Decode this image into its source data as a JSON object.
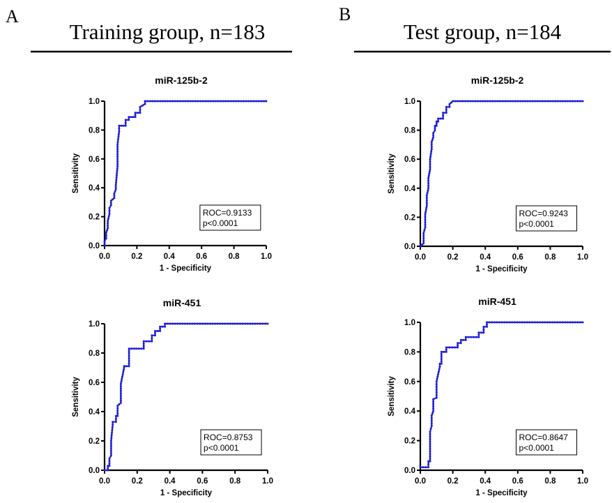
{
  "panels": [
    {
      "letter": "A",
      "title": "Training group, n=183"
    },
    {
      "letter": "B",
      "title": "Test group, n=184"
    }
  ],
  "style": {
    "curve_color": "#1f1fd6",
    "axis_color": "#000000"
  },
  "chart_data": [
    {
      "type": "line",
      "title": "miR-125b-2",
      "xlabel": "1 - Specificity",
      "ylabel": "Sensitivity",
      "xlim": [
        0,
        1
      ],
      "ylim": [
        0,
        1
      ],
      "xticks": [
        "0.0",
        "0.2",
        "0.4",
        "0.6",
        "0.8",
        "1.0"
      ],
      "yticks": [
        "0.0",
        "0.2",
        "0.4",
        "0.6",
        "0.8",
        "1.0"
      ],
      "roc_text": "ROC=0.9133",
      "p_text": "p<0.0001",
      "x": [
        0,
        0,
        0.01,
        0.01,
        0.02,
        0.02,
        0.03,
        0.03,
        0.04,
        0.04,
        0.06,
        0.06,
        0.07,
        0.07,
        0.08,
        0.08,
        0.09,
        0.09,
        0.13,
        0.13,
        0.15,
        0.15,
        0.19,
        0.19,
        0.22,
        0.22,
        0.25,
        0.25,
        1.0
      ],
      "y": [
        0,
        0.03,
        0.05,
        0.09,
        0.12,
        0.17,
        0.22,
        0.26,
        0.28,
        0.31,
        0.33,
        0.36,
        0.39,
        0.42,
        0.55,
        0.7,
        0.79,
        0.83,
        0.83,
        0.87,
        0.87,
        0.89,
        0.89,
        0.92,
        0.92,
        0.96,
        0.98,
        1.0,
        1.0
      ]
    },
    {
      "type": "line",
      "title": "miR-125b-2",
      "xlabel": "1 - Specificity",
      "ylabel": "Sensitivity",
      "xlim": [
        0,
        1
      ],
      "ylim": [
        0,
        1
      ],
      "xticks": [
        "0.0",
        "0.2",
        "0.4",
        "0.6",
        "0.8",
        "1.0"
      ],
      "yticks": [
        "0.0",
        "0.2",
        "0.4",
        "0.6",
        "0.8",
        "1.0"
      ],
      "roc_text": "ROC=0.9243",
      "p_text": "p<0.0001",
      "x": [
        0,
        0.02,
        0.02,
        0.03,
        0.03,
        0.04,
        0.04,
        0.05,
        0.05,
        0.06,
        0.06,
        0.07,
        0.07,
        0.08,
        0.08,
        0.09,
        0.09,
        0.1,
        0.1,
        0.11,
        0.11,
        0.14,
        0.14,
        0.16,
        0.16,
        0.18,
        0.18,
        0.2,
        1.0
      ],
      "y": [
        0,
        0.02,
        0.09,
        0.13,
        0.22,
        0.28,
        0.35,
        0.4,
        0.47,
        0.53,
        0.6,
        0.67,
        0.72,
        0.75,
        0.78,
        0.8,
        0.83,
        0.83,
        0.86,
        0.86,
        0.88,
        0.88,
        0.92,
        0.92,
        0.96,
        0.96,
        0.98,
        1.0,
        1.0
      ]
    },
    {
      "type": "line",
      "title": "miR-451",
      "xlabel": "1 - Specificity",
      "ylabel": "Sensitivity",
      "xlim": [
        0,
        1
      ],
      "ylim": [
        0,
        1
      ],
      "xticks": [
        "0.0",
        "0.2",
        "0.4",
        "0.6",
        "0.8",
        "1.0"
      ],
      "yticks": [
        "0.0",
        "0.2",
        "0.4",
        "0.6",
        "0.8",
        "1.0"
      ],
      "roc_text": "ROC=0.8753",
      "p_text": "p<0.0001",
      "x": [
        0,
        0.02,
        0.02,
        0.03,
        0.03,
        0.04,
        0.04,
        0.05,
        0.05,
        0.07,
        0.07,
        0.08,
        0.08,
        0.1,
        0.1,
        0.12,
        0.12,
        0.15,
        0.15,
        0.15,
        0.24,
        0.24,
        0.29,
        0.29,
        0.31,
        0.31,
        0.34,
        0.34,
        0.37,
        0.37,
        1.0
      ],
      "y": [
        0,
        0,
        0.03,
        0.03,
        0.08,
        0.1,
        0.2,
        0.31,
        0.33,
        0.33,
        0.37,
        0.37,
        0.44,
        0.46,
        0.59,
        0.7,
        0.71,
        0.71,
        0.8,
        0.83,
        0.83,
        0.88,
        0.88,
        0.92,
        0.92,
        0.95,
        0.95,
        0.98,
        0.98,
        1.0,
        1.0
      ]
    },
    {
      "type": "line",
      "title": "miR-451",
      "xlabel": "1 - Specificity",
      "ylabel": "Sensitivity",
      "xlim": [
        0,
        1
      ],
      "ylim": [
        0,
        1
      ],
      "xticks": [
        "0.0",
        "0.2",
        "0.4",
        "0.6",
        "0.8",
        "1.0"
      ],
      "yticks": [
        "0.0",
        "0.2",
        "0.4",
        "0.6",
        "0.8",
        "1.0"
      ],
      "roc_text": "ROC=0.8647",
      "p_text": "p<0.0001",
      "x": [
        0,
        0.05,
        0.05,
        0.06,
        0.06,
        0.07,
        0.07,
        0.08,
        0.08,
        0.1,
        0.1,
        0.12,
        0.12,
        0.13,
        0.13,
        0.16,
        0.16,
        0.18,
        0.18,
        0.23,
        0.23,
        0.25,
        0.25,
        0.28,
        0.28,
        0.36,
        0.36,
        0.39,
        0.39,
        0.41,
        0.41,
        1.0
      ],
      "y": [
        0.02,
        0.02,
        0.06,
        0.06,
        0.26,
        0.3,
        0.37,
        0.4,
        0.48,
        0.49,
        0.6,
        0.7,
        0.72,
        0.72,
        0.8,
        0.8,
        0.83,
        0.83,
        0.83,
        0.83,
        0.86,
        0.86,
        0.88,
        0.88,
        0.9,
        0.9,
        0.93,
        0.93,
        0.97,
        0.97,
        1.0,
        1.0
      ]
    }
  ]
}
